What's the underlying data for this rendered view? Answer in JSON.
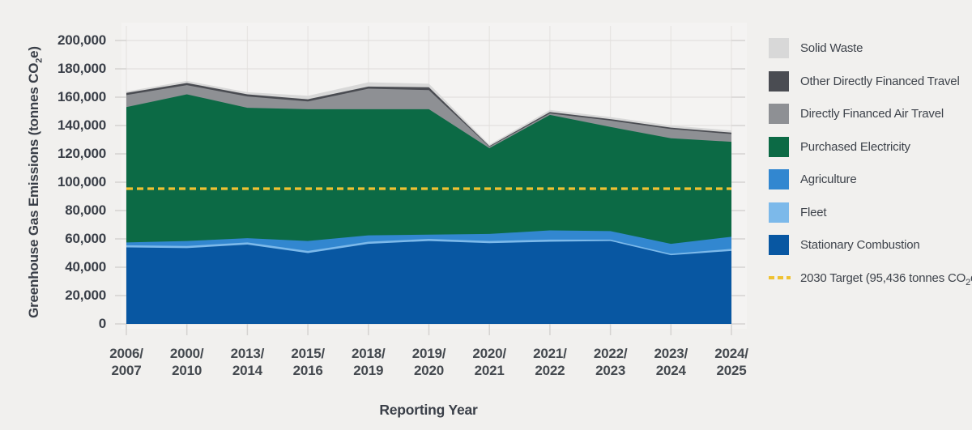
{
  "chart_data": {
    "type": "area",
    "stacked": true,
    "xlabel": "Reporting Year",
    "ylabel": "Greenhouse Gas Emissions (tonnes CO2e)",
    "ylabel_parts": {
      "pre": "Greenhouse Gas Emissions (tonnes CO",
      "sub": "2",
      "post": "e)"
    },
    "ylim": [
      0,
      200000
    ],
    "y_tick_step": 20000,
    "grid": true,
    "legend_position": "right",
    "y_tick_labels": [
      "200,000",
      "180,000",
      "160,000",
      "140,000",
      "120,000",
      "100,000",
      "80,000",
      "60,000",
      "40,000",
      "20,000",
      "0"
    ],
    "x_tick_labels": [
      "2006/\n2007",
      "2000/\n2010",
      "2013/\n2014",
      "2015/\n2016",
      "2018/\n2019",
      "2019/\n2020",
      "2020/\n2021",
      "2021/\n2022",
      "2022/\n2023",
      "2023/\n2024",
      "2024/\n2025"
    ],
    "series": [
      {
        "name": "Stationary Combustion",
        "color": "#0857a2",
        "values": [
          54000,
          53500,
          56000,
          50000,
          56500,
          58500,
          57000,
          58000,
          58500,
          48500,
          51500
        ]
      },
      {
        "name": "Fleet",
        "color": "#7cb9ea",
        "values": [
          1500,
          1500,
          1500,
          1500,
          1500,
          1500,
          1500,
          1500,
          1000,
          1000,
          1500
        ]
      },
      {
        "name": "Agriculture",
        "color": "#3287d0",
        "values": [
          2000,
          3500,
          3000,
          7000,
          4500,
          3000,
          5000,
          6500,
          6000,
          7000,
          8500
        ]
      },
      {
        "name": "Purchased Electricity",
        "color": "#0c6a45",
        "values": [
          95500,
          103500,
          92000,
          93000,
          89000,
          88500,
          60500,
          81500,
          73500,
          74500,
          67000
        ]
      },
      {
        "name": "Directly Financed Air Travel",
        "color": "#8e9094",
        "values": [
          8500,
          6500,
          8000,
          5500,
          14500,
          13500,
          1000,
          1000,
          4500,
          6500,
          5500
        ]
      },
      {
        "name": "Other Directly Financed Travel",
        "color": "#4a4c52",
        "values": [
          1500,
          1500,
          1500,
          1500,
          1500,
          2000,
          500,
          1000,
          1000,
          1000,
          1000
        ]
      },
      {
        "name": "Solid Waste",
        "color": "#d8d8d8",
        "values": [
          1000,
          1500,
          1500,
          2500,
          3000,
          2500,
          1000,
          1500,
          1500,
          1500,
          1500
        ]
      }
    ],
    "target_line": {
      "value": 95436,
      "color": "#efc132",
      "style": "dashed"
    },
    "legend": [
      {
        "label": "Solid Waste",
        "color": "#d8d8d8"
      },
      {
        "label": "Other Directly Financed Travel",
        "color": "#4a4c52"
      },
      {
        "label": "Directly Financed Air Travel",
        "color": "#8e9094"
      },
      {
        "label": "Purchased Electricity",
        "color": "#0c6a45"
      },
      {
        "label": "Agriculture",
        "color": "#3287d0"
      },
      {
        "label": "Fleet",
        "color": "#7cb9ea"
      },
      {
        "label": "Stationary Combustion",
        "color": "#0857a2"
      },
      {
        "label_parts": {
          "pre": "2030 Target (95,436 tonnes CO",
          "sub": "2",
          "post": "e)"
        },
        "color": "#efc132",
        "style": "dashed"
      }
    ]
  }
}
